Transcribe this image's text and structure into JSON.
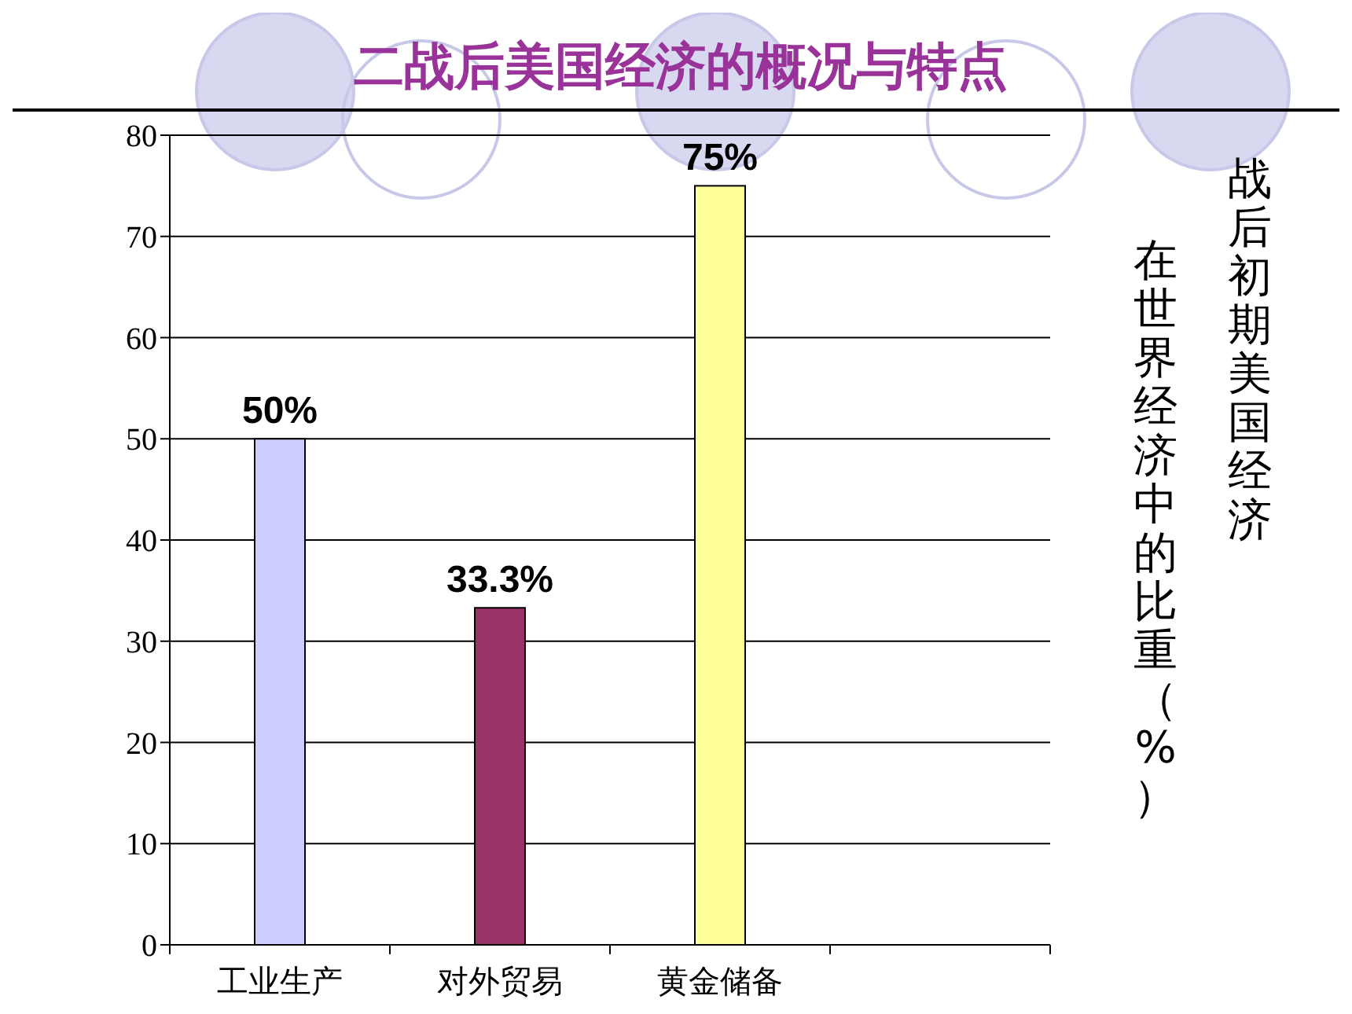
{
  "chart_data": {
    "type": "bar",
    "title": "二战后美国经济的概况与特点",
    "ylabel": "战后初期美国经济",
    "annotations": [
      "在世界经济中的比重（%）"
    ],
    "categories": [
      "工业生产",
      "对外贸易",
      "黄金储备",
      null
    ],
    "values": [
      50,
      33.3,
      75,
      null
    ],
    "colors": [
      "#ccccff",
      "#993366",
      "#ffff99",
      null
    ],
    "value_labels": [
      "50%",
      "33.3%",
      "75%",
      null
    ],
    "ylim": [
      0,
      80
    ],
    "yticks": [
      0,
      10,
      20,
      30,
      40,
      50,
      60,
      70,
      80
    ],
    "grid": "y"
  }
}
